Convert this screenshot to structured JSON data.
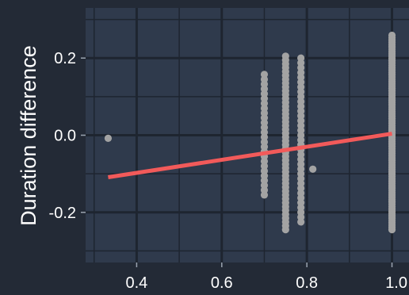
{
  "colors": {
    "background": "#232a36",
    "panel": "#2f3a4c",
    "grid_major": "#1e2530",
    "grid_minor": "#283243",
    "points": "#a3a3a3",
    "trend": "#f25a5a",
    "text": "#ffffff"
  },
  "chart_data": {
    "type": "scatter",
    "title": "",
    "xlabel": "",
    "ylabel": "Duration difference",
    "xlim": [
      0.28,
      1.04
    ],
    "ylim": [
      -0.33,
      0.33
    ],
    "x_ticks": [
      0.4,
      0.6,
      0.8,
      1.0
    ],
    "x_tick_labels": [
      "0.4",
      "0.6",
      "0.8",
      "1.0"
    ],
    "y_ticks": [
      -0.2,
      0.0,
      0.2
    ],
    "y_tick_labels": [
      "-0.2",
      "0.0",
      "0.2"
    ],
    "grid": true,
    "legend": "none",
    "points": {
      "isolated": [
        [
          0.333,
          -0.008
        ],
        [
          0.814,
          -0.088
        ]
      ],
      "columns": [
        {
          "x": 0.7,
          "y_min": -0.155,
          "y_max": 0.165,
          "step": 0.0125
        },
        {
          "x": 0.75,
          "y_min": -0.245,
          "y_max": 0.21,
          "step": 0.01
        },
        {
          "x": 0.786,
          "y_min": -0.225,
          "y_max": 0.2,
          "step": 0.0125
        },
        {
          "x": 1.0,
          "y_min": -0.245,
          "y_max": 0.26,
          "step": 0.006
        }
      ]
    },
    "trend_line": {
      "x": [
        0.333,
        1.0
      ],
      "y": [
        -0.109,
        0.004
      ]
    }
  }
}
